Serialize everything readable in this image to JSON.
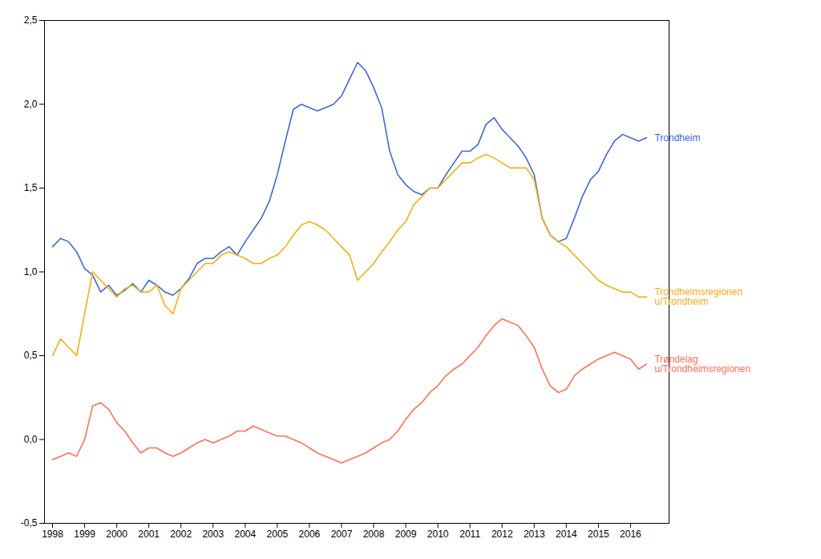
{
  "chart_data": {
    "type": "line",
    "x": [
      1998,
      1998.25,
      1998.5,
      1998.75,
      1999,
      1999.25,
      1999.5,
      1999.75,
      2000,
      2000.25,
      2000.5,
      2000.75,
      2001,
      2001.25,
      2001.5,
      2001.75,
      2002,
      2002.25,
      2002.5,
      2002.75,
      2003,
      2003.25,
      2003.5,
      2003.75,
      2004,
      2004.25,
      2004.5,
      2004.75,
      2005,
      2005.25,
      2005.5,
      2005.75,
      2006,
      2006.25,
      2006.5,
      2006.75,
      2007,
      2007.25,
      2007.5,
      2007.75,
      2008,
      2008.25,
      2008.5,
      2008.75,
      2009,
      2009.25,
      2009.5,
      2009.75,
      2010,
      2010.25,
      2010.5,
      2010.75,
      2011,
      2011.25,
      2011.5,
      2011.75,
      2012,
      2012.25,
      2012.5,
      2012.75,
      2013,
      2013.25,
      2013.5,
      2013.75,
      2014,
      2014.25,
      2014.5,
      2014.75,
      2015,
      2015.25,
      2015.5,
      2015.75,
      2016,
      2016.25,
      2016.5
    ],
    "series": [
      {
        "name": "Trondheim",
        "values": [
          1.15,
          1.2,
          1.18,
          1.12,
          1.02,
          0.98,
          0.88,
          0.92,
          0.86,
          0.89,
          0.93,
          0.88,
          0.95,
          0.92,
          0.88,
          0.86,
          0.9,
          0.96,
          1.05,
          1.08,
          1.08,
          1.12,
          1.15,
          1.1,
          1.18,
          1.25,
          1.32,
          1.42,
          1.58,
          1.78,
          1.97,
          2.0,
          1.98,
          1.96,
          1.98,
          2.0,
          2.05,
          2.15,
          2.25,
          2.2,
          2.1,
          1.98,
          1.72,
          1.58,
          1.52,
          1.48,
          1.46,
          1.5,
          1.5,
          1.58,
          1.65,
          1.72,
          1.72,
          1.76,
          1.88,
          1.92,
          1.85,
          1.8,
          1.75,
          1.68,
          1.58,
          1.32,
          1.22,
          1.18,
          1.2,
          1.32,
          1.45,
          1.55,
          1.6,
          1.7,
          1.78,
          1.82,
          1.8,
          1.78,
          1.8
        ]
      },
      {
        "name": "Trondheimsregionen\nu/Trondheim",
        "values": [
          0.5,
          0.6,
          0.55,
          0.5,
          0.75,
          1.0,
          0.95,
          0.9,
          0.85,
          0.9,
          0.92,
          0.88,
          0.88,
          0.92,
          0.8,
          0.75,
          0.9,
          0.95,
          1.0,
          1.05,
          1.05,
          1.1,
          1.12,
          1.1,
          1.08,
          1.05,
          1.05,
          1.08,
          1.1,
          1.15,
          1.22,
          1.28,
          1.3,
          1.28,
          1.25,
          1.2,
          1.15,
          1.1,
          0.95,
          1.0,
          1.05,
          1.12,
          1.18,
          1.25,
          1.3,
          1.4,
          1.45,
          1.5,
          1.5,
          1.55,
          1.6,
          1.65,
          1.65,
          1.68,
          1.7,
          1.68,
          1.65,
          1.62,
          1.62,
          1.62,
          1.55,
          1.32,
          1.22,
          1.18,
          1.15,
          1.1,
          1.05,
          1.0,
          0.95,
          0.92,
          0.9,
          0.88,
          0.88,
          0.85,
          0.85
        ]
      },
      {
        "name": "Trøndelag\nu/Trondheimsregionen",
        "values": [
          -0.12,
          -0.1,
          -0.08,
          -0.1,
          0.0,
          0.2,
          0.22,
          0.18,
          0.1,
          0.05,
          -0.02,
          -0.08,
          -0.05,
          -0.05,
          -0.08,
          -0.1,
          -0.08,
          -0.05,
          -0.02,
          0.0,
          -0.02,
          0.0,
          0.02,
          0.05,
          0.05,
          0.08,
          0.06,
          0.04,
          0.02,
          0.02,
          0.0,
          -0.02,
          -0.05,
          -0.08,
          -0.1,
          -0.12,
          -0.14,
          -0.12,
          -0.1,
          -0.08,
          -0.05,
          -0.02,
          0.0,
          0.05,
          0.12,
          0.18,
          0.22,
          0.28,
          0.32,
          0.38,
          0.42,
          0.45,
          0.5,
          0.55,
          0.62,
          0.68,
          0.72,
          0.7,
          0.68,
          0.62,
          0.55,
          0.42,
          0.32,
          0.28,
          0.3,
          0.38,
          0.42,
          0.45,
          0.48,
          0.5,
          0.52,
          0.5,
          0.48,
          0.42,
          0.45
        ]
      }
    ],
    "xlim": [
      1997.75,
      2017.2
    ],
    "xticks": [
      1998,
      1999,
      2000,
      2001,
      2002,
      2003,
      2004,
      2005,
      2006,
      2007,
      2008,
      2009,
      2010,
      2011,
      2012,
      2013,
      2014,
      2015,
      2016
    ],
    "ylim": [
      -0.5,
      2.5
    ],
    "yticks": [
      {
        "value": -0.5,
        "label": "-0,5"
      },
      {
        "value": 0.0,
        "label": "0,0"
      },
      {
        "value": 0.5,
        "label": "0,5"
      },
      {
        "value": 1.0,
        "label": "1,0"
      },
      {
        "value": 1.5,
        "label": "1,5"
      },
      {
        "value": 2.0,
        "label": "2,0"
      },
      {
        "value": 2.5,
        "label": "2,5"
      }
    ],
    "grid": false
  }
}
